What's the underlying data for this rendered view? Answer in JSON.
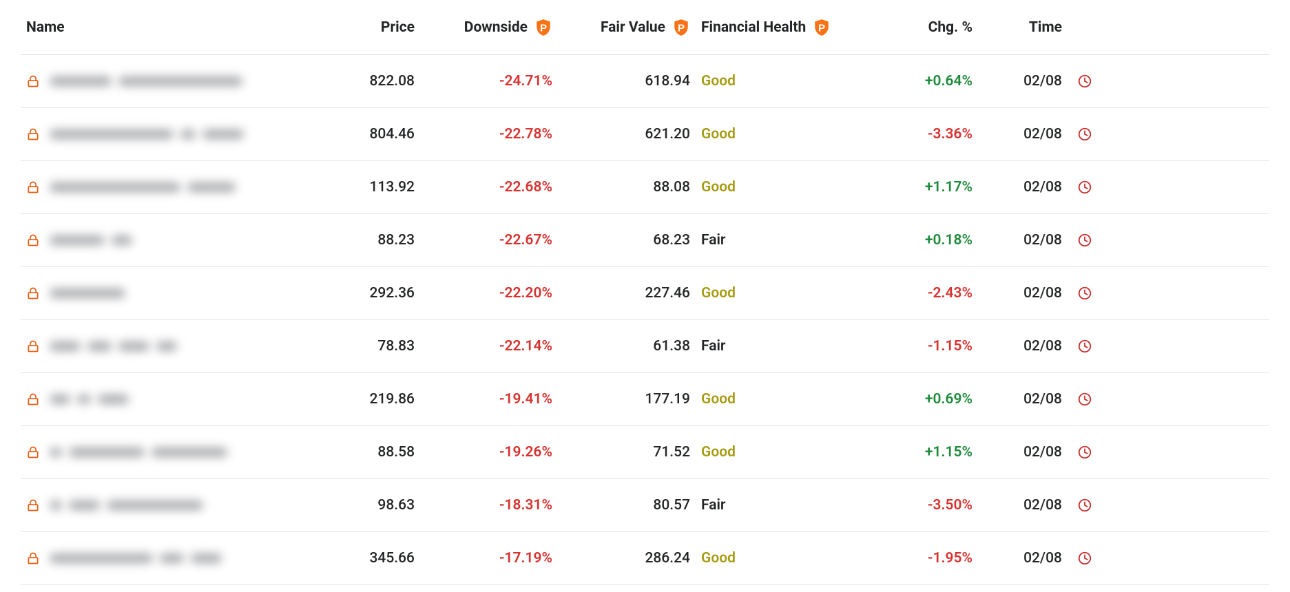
{
  "colors": {
    "text": "#232526",
    "border": "#e7e7e9",
    "neg": "#d7322f",
    "pos": "#1e8a3b",
    "good": "#a79b12",
    "lock": "#ea580c",
    "badge_bg": "#f97316",
    "badge_fg": "#ffffff",
    "clock": "#c73230",
    "blur_bar": "#7d7f84"
  },
  "columns": {
    "name": "Name",
    "price": "Price",
    "downside": "Downside",
    "fair_value": "Fair Value",
    "health": "Financial Health",
    "chg": "Chg. %",
    "time": "Time"
  },
  "rows": [
    {
      "name_bars": [
        90,
        180
      ],
      "price": "822.08",
      "downside": "-24.71%",
      "fair_value": "618.94",
      "health": "Good",
      "chg": "+0.64%",
      "chg_dir": "pos",
      "time": "02/08"
    },
    {
      "name_bars": [
        180,
        22,
        60
      ],
      "price": "804.46",
      "downside": "-22.78%",
      "fair_value": "621.20",
      "health": "Good",
      "chg": "-3.36%",
      "chg_dir": "neg",
      "time": "02/08"
    },
    {
      "name_bars": [
        190,
        70
      ],
      "price": "113.92",
      "downside": "-22.68%",
      "fair_value": "88.08",
      "health": "Good",
      "chg": "+1.17%",
      "chg_dir": "pos",
      "time": "02/08"
    },
    {
      "name_bars": [
        80,
        30
      ],
      "price": "88.23",
      "downside": "-22.67%",
      "fair_value": "68.23",
      "health": "Fair",
      "chg": "+0.18%",
      "chg_dir": "pos",
      "time": "02/08"
    },
    {
      "name_bars": [
        110
      ],
      "price": "292.36",
      "downside": "-22.20%",
      "fair_value": "227.46",
      "health": "Good",
      "chg": "-2.43%",
      "chg_dir": "neg",
      "time": "02/08"
    },
    {
      "name_bars": [
        45,
        35,
        45,
        30
      ],
      "price": "78.83",
      "downside": "-22.14%",
      "fair_value": "61.38",
      "health": "Fair",
      "chg": "-1.15%",
      "chg_dir": "neg",
      "time": "02/08"
    },
    {
      "name_bars": [
        30,
        20,
        45
      ],
      "price": "219.86",
      "downside": "-19.41%",
      "fair_value": "177.19",
      "health": "Good",
      "chg": "+0.69%",
      "chg_dir": "pos",
      "time": "02/08"
    },
    {
      "name_bars": [
        18,
        110,
        110
      ],
      "price": "88.58",
      "downside": "-19.26%",
      "fair_value": "71.52",
      "health": "Good",
      "chg": "+1.15%",
      "chg_dir": "pos",
      "time": "02/08"
    },
    {
      "name_bars": [
        18,
        45,
        140
      ],
      "price": "98.63",
      "downside": "-18.31%",
      "fair_value": "80.57",
      "health": "Fair",
      "chg": "-3.50%",
      "chg_dir": "neg",
      "time": "02/08"
    },
    {
      "name_bars": [
        150,
        35,
        45
      ],
      "price": "345.66",
      "downside": "-17.19%",
      "fair_value": "286.24",
      "health": "Good",
      "chg": "-1.95%",
      "chg_dir": "neg",
      "time": "02/08"
    }
  ]
}
